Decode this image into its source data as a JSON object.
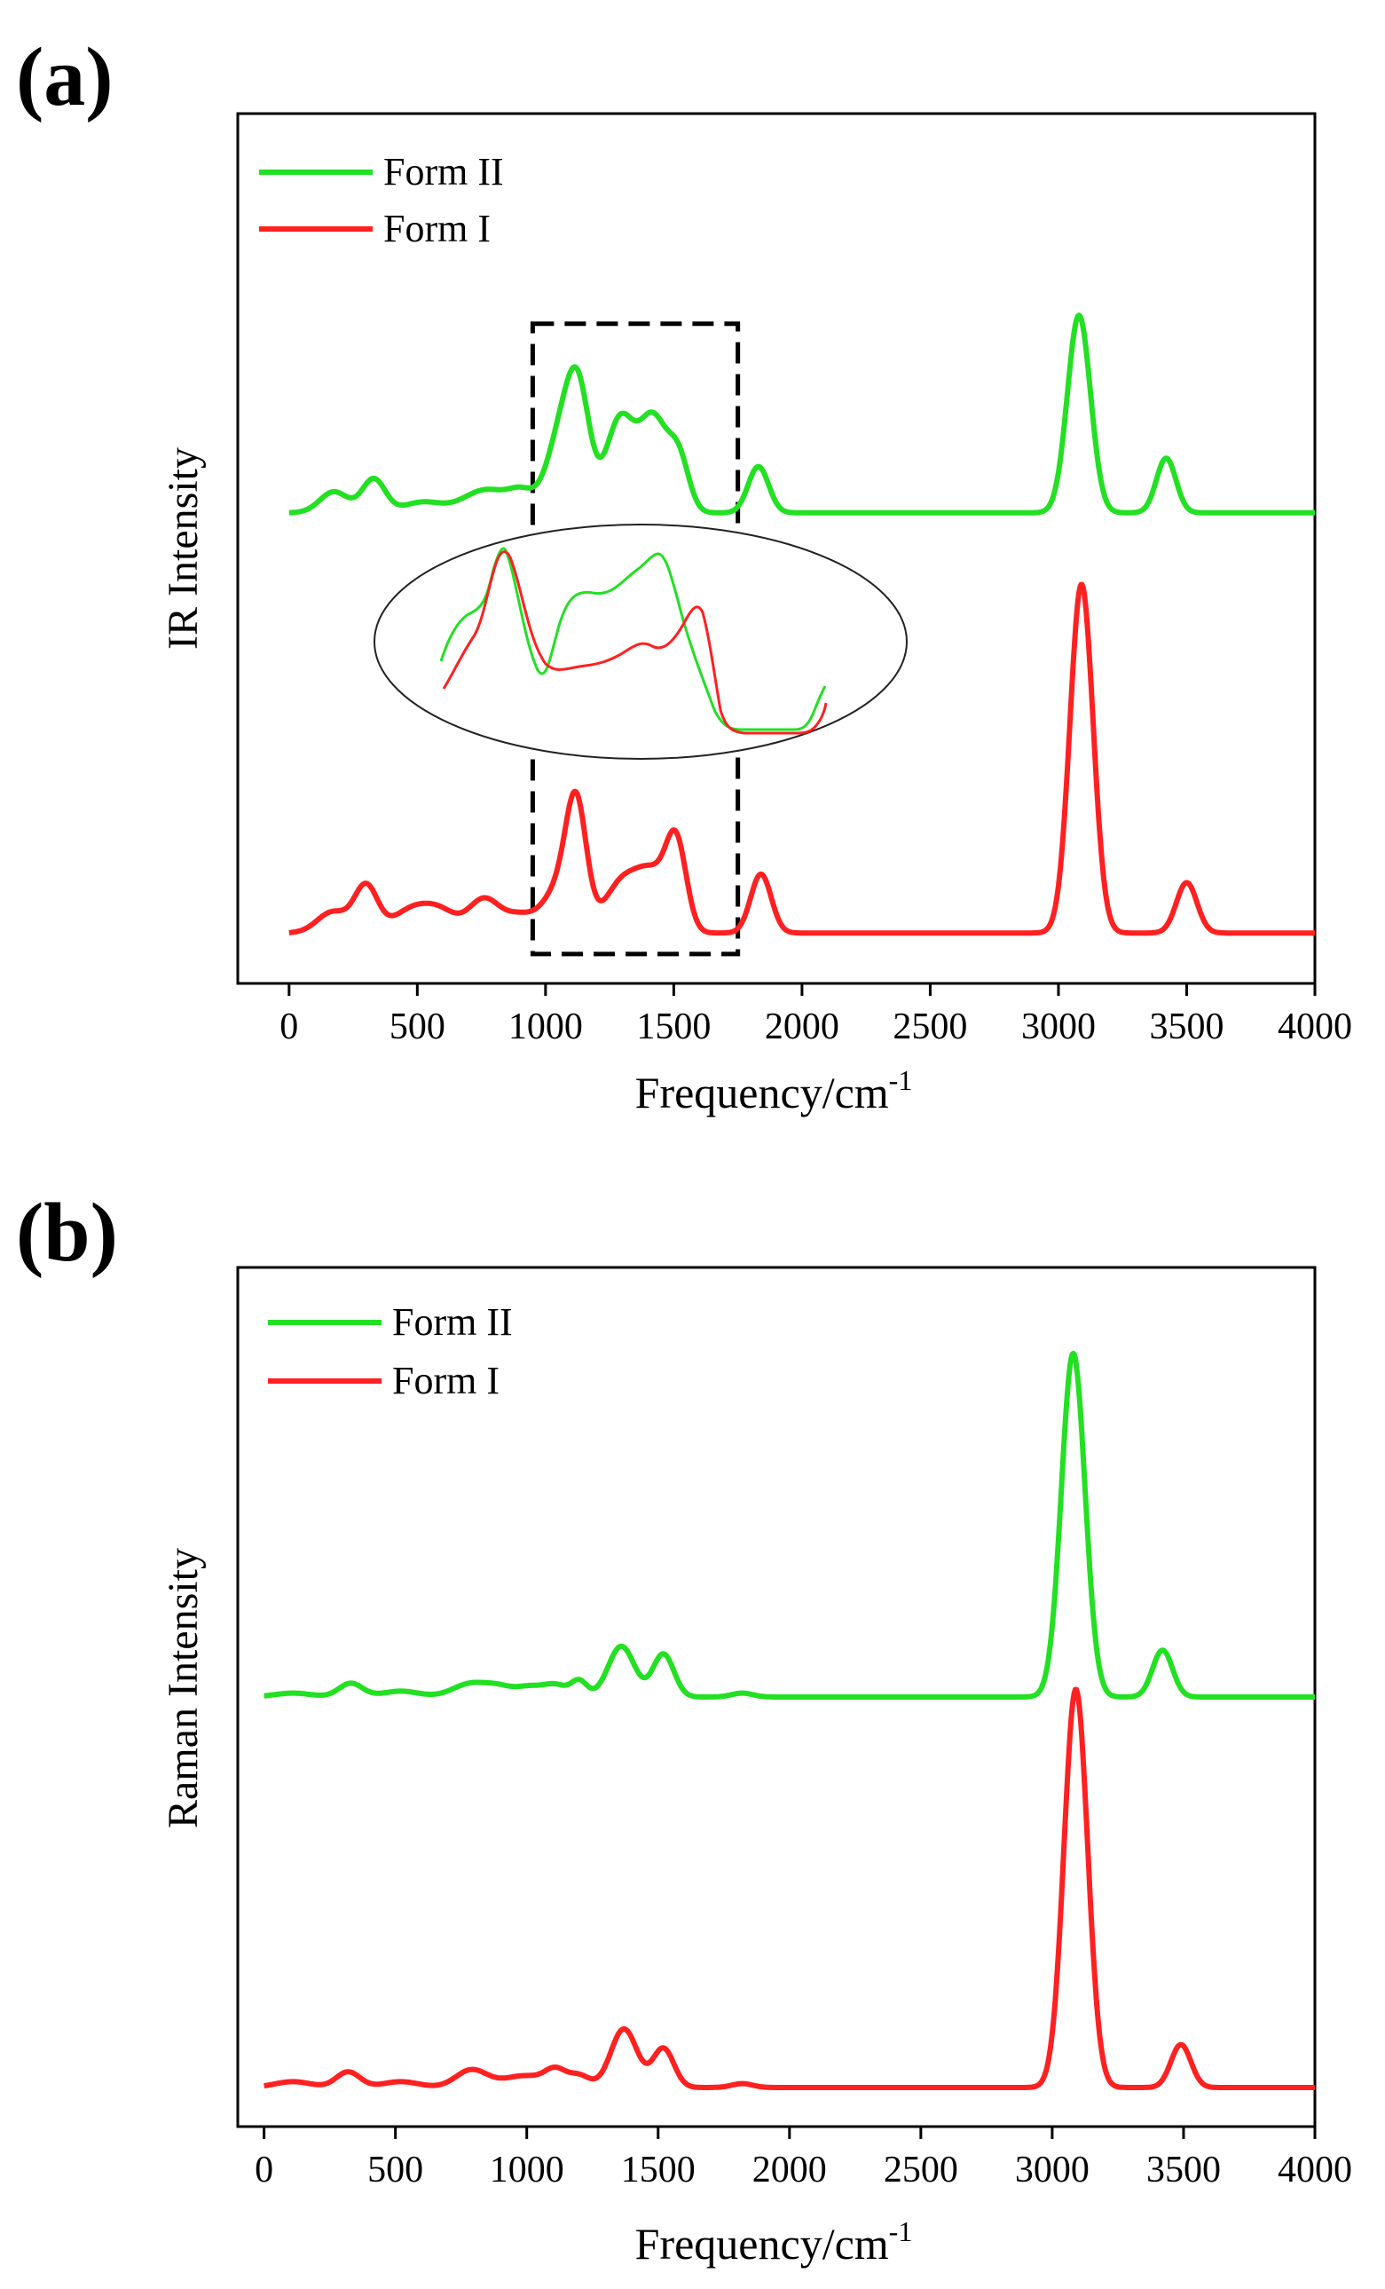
{
  "chart_data": [
    {
      "panel_label": "(a)",
      "type": "line",
      "title": "",
      "xlabel": "Frequency/cm",
      "xlabel_sup": "-1",
      "ylabel": "IR Intensity",
      "xlim": [
        -200,
        4000
      ],
      "ylim": [
        -0.12,
        1.95
      ],
      "xticks": [
        "0",
        "500",
        "1000",
        "1500",
        "2000",
        "2500",
        "3000",
        "3500",
        "4000"
      ],
      "xtick_values": [
        0,
        500,
        1000,
        1500,
        2000,
        2500,
        3000,
        3500,
        4000
      ],
      "legend_position": "top-left",
      "series": [
        {
          "name": "Form II",
          "color": "#22e022",
          "baseline": 1.0,
          "domain": [
            0,
            4000
          ],
          "peaks": [
            [
              175,
              0.05,
              55
            ],
            [
              330,
              0.08,
              45
            ],
            [
              520,
              0.025,
              75
            ],
            [
              770,
              0.055,
              90
            ],
            [
              910,
              0.04,
              50
            ],
            [
              1060,
              0.18,
              55
            ],
            [
              1130,
              0.25,
              45
            ],
            [
              1290,
              0.22,
              55
            ],
            [
              1420,
              0.22,
              55
            ],
            [
              1520,
              0.12,
              40
            ],
            [
              1830,
              0.11,
              40
            ],
            [
              3080,
              0.47,
              45
            ],
            [
              3420,
              0.13,
              38
            ]
          ]
        },
        {
          "name": "Form I",
          "color": "#ff2020",
          "baseline": 0.0,
          "domain": [
            0,
            4000
          ],
          "peaks": [
            [
              170,
              0.05,
              60
            ],
            [
              300,
              0.11,
              45
            ],
            [
              490,
              0.06,
              80
            ],
            [
              600,
              0.035,
              60
            ],
            [
              760,
              0.08,
              60
            ],
            [
              900,
              0.04,
              60
            ],
            [
              1050,
              0.1,
              60
            ],
            [
              1120,
              0.28,
              40
            ],
            [
              1300,
              0.12,
              70
            ],
            [
              1420,
              0.12,
              60
            ],
            [
              1510,
              0.2,
              40
            ],
            [
              1840,
              0.14,
              40
            ],
            [
              3090,
              0.83,
              45
            ],
            [
              3500,
              0.12,
              40
            ]
          ]
        }
      ],
      "annotations": [
        {
          "type": "dashed-box",
          "x_range": [
            950,
            1750
          ],
          "y_range": [
            -0.05,
            1.45
          ]
        },
        {
          "type": "ellipse-inset",
          "description": "zoomed overlay of both series in 950-1750 cm-1"
        }
      ]
    },
    {
      "panel_label": "(b)",
      "type": "line",
      "title": "",
      "xlabel": "Frequency/cm",
      "xlabel_sup": "-1",
      "ylabel": "Raman Intensity",
      "xlim": [
        -100,
        4000
      ],
      "ylim": [
        -0.1,
        2.1
      ],
      "xticks": [
        "0",
        "500",
        "1000",
        "1500",
        "2000",
        "2500",
        "3000",
        "3500",
        "4000"
      ],
      "xtick_values": [
        0,
        500,
        1000,
        1500,
        2000,
        2500,
        3000,
        3500,
        4000
      ],
      "legend_position": "top-left",
      "series": [
        {
          "name": "Form II",
          "color": "#22e022",
          "baseline": 1.0,
          "domain": [
            0,
            4000
          ],
          "peaks": [
            [
              110,
              0.01,
              70
            ],
            [
              330,
              0.035,
              45
            ],
            [
              520,
              0.015,
              70
            ],
            [
              790,
              0.035,
              70
            ],
            [
              900,
              0.02,
              50
            ],
            [
              1010,
              0.025,
              50
            ],
            [
              1110,
              0.03,
              45
            ],
            [
              1200,
              0.04,
              30
            ],
            [
              1360,
              0.13,
              50
            ],
            [
              1520,
              0.11,
              40
            ],
            [
              1820,
              0.01,
              40
            ],
            [
              3080,
              0.88,
              45
            ],
            [
              3420,
              0.12,
              38
            ]
          ]
        },
        {
          "name": "Form I",
          "color": "#ff2020",
          "baseline": 0.0,
          "domain": [
            0,
            4000
          ],
          "peaks": [
            [
              110,
              0.015,
              70
            ],
            [
              320,
              0.04,
              45
            ],
            [
              520,
              0.015,
              70
            ],
            [
              790,
              0.045,
              60
            ],
            [
              990,
              0.03,
              80
            ],
            [
              1110,
              0.04,
              40
            ],
            [
              1200,
              0.03,
              40
            ],
            [
              1370,
              0.15,
              50
            ],
            [
              1520,
              0.1,
              40
            ],
            [
              1820,
              0.01,
              40
            ],
            [
              3090,
              1.02,
              45
            ],
            [
              3490,
              0.11,
              38
            ]
          ]
        }
      ],
      "annotations": []
    }
  ]
}
